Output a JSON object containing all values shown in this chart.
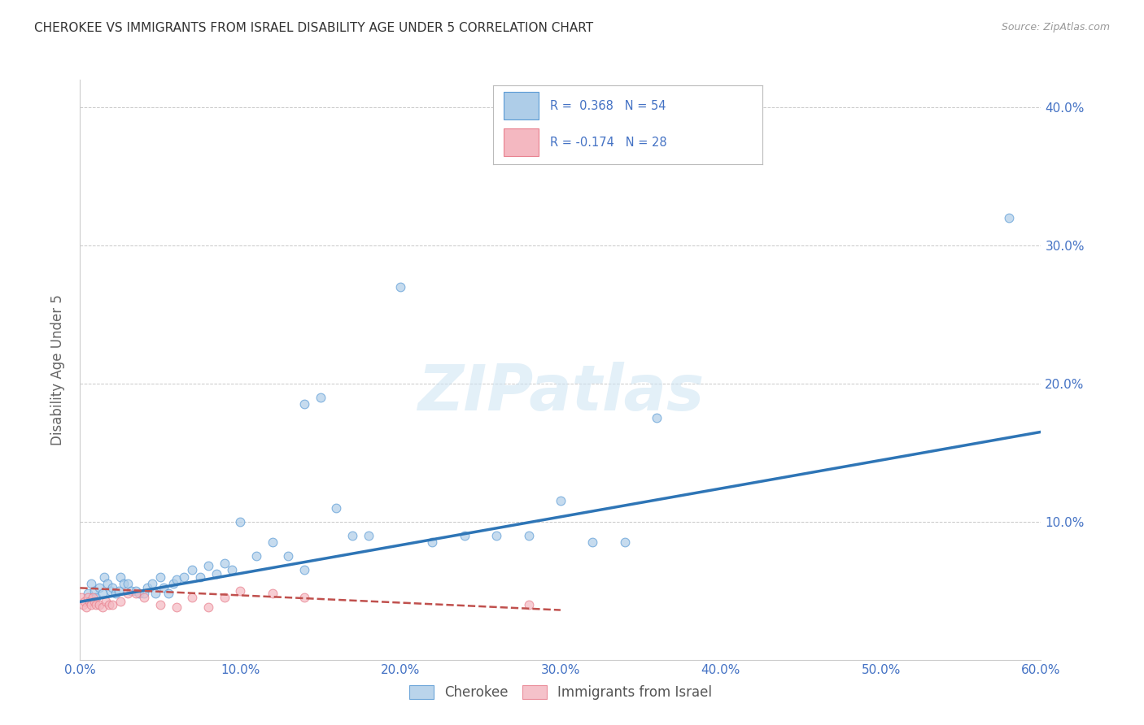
{
  "title": "CHEROKEE VS IMMIGRANTS FROM ISRAEL DISABILITY AGE UNDER 5 CORRELATION CHART",
  "source": "Source: ZipAtlas.com",
  "ylabel": "Disability Age Under 5",
  "xlim": [
    0.0,
    0.6
  ],
  "ylim": [
    0.0,
    0.42
  ],
  "xtick_vals": [
    0.0,
    0.1,
    0.2,
    0.3,
    0.4,
    0.5,
    0.6
  ],
  "ytick_vals": [
    0.1,
    0.2,
    0.3,
    0.4
  ],
  "watermark": "ZIPatlas",
  "blue_scatter_x": [
    0.005,
    0.007,
    0.009,
    0.01,
    0.012,
    0.014,
    0.015,
    0.017,
    0.019,
    0.02,
    0.022,
    0.024,
    0.025,
    0.027,
    0.03,
    0.032,
    0.035,
    0.037,
    0.04,
    0.042,
    0.045,
    0.047,
    0.05,
    0.052,
    0.055,
    0.058,
    0.06,
    0.065,
    0.07,
    0.075,
    0.08,
    0.085,
    0.09,
    0.095,
    0.1,
    0.11,
    0.12,
    0.13,
    0.14,
    0.15,
    0.16,
    0.17,
    0.18,
    0.2,
    0.22,
    0.24,
    0.26,
    0.28,
    0.3,
    0.32,
    0.34,
    0.36,
    0.58,
    0.14
  ],
  "blue_scatter_y": [
    0.048,
    0.055,
    0.05,
    0.045,
    0.052,
    0.048,
    0.06,
    0.055,
    0.05,
    0.052,
    0.048,
    0.05,
    0.06,
    0.055,
    0.055,
    0.05,
    0.05,
    0.048,
    0.048,
    0.052,
    0.055,
    0.048,
    0.06,
    0.052,
    0.048,
    0.055,
    0.058,
    0.06,
    0.065,
    0.06,
    0.068,
    0.062,
    0.07,
    0.065,
    0.1,
    0.075,
    0.085,
    0.075,
    0.065,
    0.19,
    0.11,
    0.09,
    0.09,
    0.27,
    0.085,
    0.09,
    0.09,
    0.09,
    0.115,
    0.085,
    0.085,
    0.175,
    0.32,
    0.185
  ],
  "pink_scatter_x": [
    0.001,
    0.002,
    0.003,
    0.004,
    0.005,
    0.006,
    0.007,
    0.008,
    0.009,
    0.01,
    0.012,
    0.014,
    0.016,
    0.018,
    0.02,
    0.025,
    0.03,
    0.035,
    0.04,
    0.05,
    0.06,
    0.07,
    0.08,
    0.09,
    0.1,
    0.12,
    0.14,
    0.28
  ],
  "pink_scatter_y": [
    0.045,
    0.04,
    0.042,
    0.038,
    0.045,
    0.042,
    0.04,
    0.045,
    0.042,
    0.04,
    0.04,
    0.038,
    0.042,
    0.04,
    0.04,
    0.042,
    0.048,
    0.048,
    0.045,
    0.04,
    0.038,
    0.045,
    0.038,
    0.045,
    0.05,
    0.048,
    0.045,
    0.04
  ],
  "blue_line_x": [
    0.0,
    0.6
  ],
  "blue_line_y": [
    0.042,
    0.165
  ],
  "pink_line_x": [
    0.0,
    0.3
  ],
  "pink_line_y": [
    0.052,
    0.036
  ],
  "blue_color": "#aecde8",
  "blue_edge": "#5b9bd5",
  "blue_line_color": "#2e75b6",
  "pink_color": "#f4b8c1",
  "pink_edge": "#e8808e",
  "pink_line_color": "#c0504d",
  "scatter_size": 60,
  "scatter_alpha": 0.7,
  "grid_color": "#c8c8c8",
  "axis_label_color": "#4472c4",
  "ylabel_color": "#666666",
  "title_color": "#333333",
  "source_color": "#999999",
  "background_color": "#ffffff"
}
